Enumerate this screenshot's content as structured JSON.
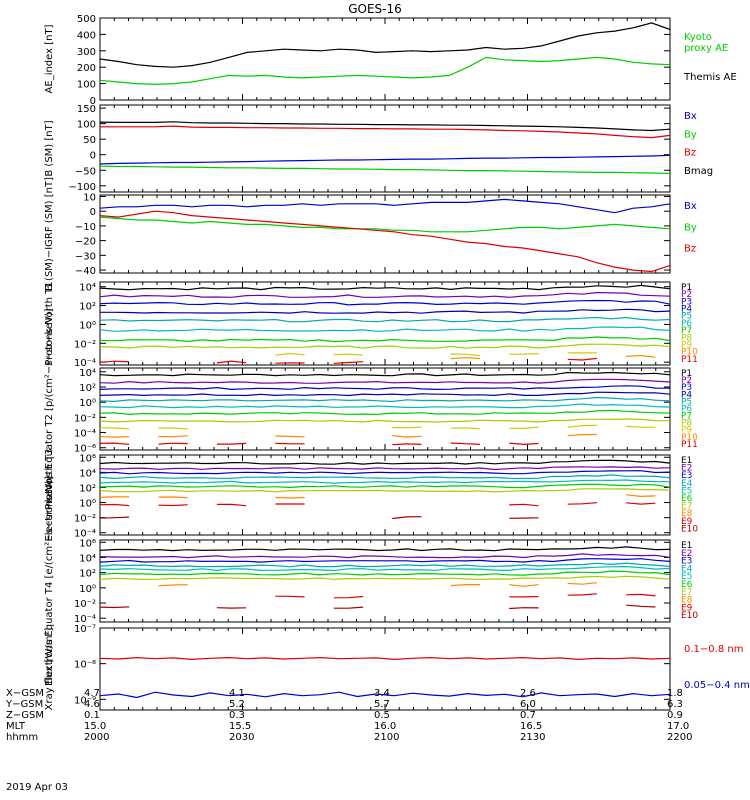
{
  "title": "GOES-16",
  "date": "2019 Apr 03",
  "colors": {
    "black": "#000000",
    "green": "#00cc00",
    "red": "#dd0000",
    "blue": "#0000cc",
    "purple": "#7700aa",
    "navy": "#0000aa",
    "cyan": "#00bbbb",
    "teal": "#00aaaa",
    "yellow": "#cccc00",
    "orange": "#ff8800",
    "darkred": "#aa0000"
  },
  "chart_data": [
    {
      "type": "line",
      "ylabel": "AE_index [nT]",
      "scale": "linear",
      "ylim": [
        0,
        500
      ],
      "yticks": [
        0,
        100,
        200,
        300,
        400,
        500
      ],
      "ytick_labels": [
        "0",
        "100",
        "200",
        "300",
        "400",
        "500"
      ],
      "series": [
        {
          "name": "Kyoto proxy AE",
          "color": "#00cc00",
          "values": [
            120,
            110,
            100,
            95,
            100,
            110,
            130,
            150,
            145,
            150,
            140,
            135,
            140,
            145,
            150,
            145,
            140,
            135,
            140,
            150,
            200,
            260,
            245,
            240,
            235,
            240,
            250,
            260,
            250,
            230,
            220,
            215
          ]
        },
        {
          "name": "Themis AE",
          "color": "#000000",
          "values": [
            250,
            235,
            215,
            205,
            200,
            210,
            230,
            260,
            290,
            300,
            310,
            305,
            300,
            310,
            305,
            290,
            295,
            300,
            295,
            300,
            305,
            320,
            310,
            315,
            330,
            360,
            390,
            410,
            420,
            440,
            470,
            430
          ]
        }
      ],
      "legend": [
        {
          "text": "Kyoto",
          "color": "#00cc00"
        },
        {
          "text": "proxy AE",
          "color": "#00cc00"
        },
        {
          "text": "Themis AE",
          "color": "#000000"
        }
      ]
    },
    {
      "type": "line",
      "ylabel": "B (SM) [nT]",
      "scale": "linear",
      "ylim": [
        -120,
        160
      ],
      "yticks": [
        -100,
        -50,
        0,
        50,
        100,
        150
      ],
      "ytick_labels": [
        "−100",
        "−50",
        "0",
        "50",
        "100",
        "150"
      ],
      "series": [
        {
          "name": "Bx",
          "color": "#0000cc",
          "values": [
            -30,
            -28,
            -27,
            -26,
            -25,
            -25,
            -24,
            -23,
            -22,
            -21,
            -20,
            -19,
            -18,
            -17,
            -17,
            -16,
            -15,
            -14,
            -14,
            -13,
            -12,
            -11,
            -11,
            -10,
            -9,
            -9,
            -8,
            -7,
            -6,
            -5,
            -4,
            -2
          ]
        },
        {
          "name": "By",
          "color": "#00cc00",
          "values": [
            -37,
            -38,
            -38,
            -39,
            -40,
            -40,
            -41,
            -42,
            -42,
            -43,
            -44,
            -44,
            -45,
            -46,
            -46,
            -47,
            -48,
            -48,
            -49,
            -50,
            -51,
            -51,
            -52,
            -53,
            -54,
            -55,
            -56,
            -57,
            -57,
            -58,
            -59,
            -60
          ]
        },
        {
          "name": "Bz",
          "color": "#dd0000",
          "values": [
            90,
            90,
            90,
            90,
            92,
            89,
            88,
            88,
            87,
            87,
            86,
            86,
            85,
            85,
            84,
            84,
            83,
            83,
            82,
            82,
            81,
            80,
            78,
            77,
            75,
            73,
            70,
            67,
            62,
            58,
            55,
            62
          ]
        },
        {
          "name": "Bmag",
          "color": "#000000",
          "values": [
            105,
            104,
            104,
            104,
            106,
            103,
            102,
            102,
            101,
            100,
            100,
            99,
            99,
            98,
            98,
            97,
            97,
            96,
            96,
            95,
            95,
            94,
            93,
            92,
            91,
            90,
            88,
            86,
            83,
            80,
            78,
            82
          ]
        }
      ],
      "legend": [
        {
          "text": "Bx",
          "color": "#0000cc"
        },
        {
          "text": "By",
          "color": "#00cc00"
        },
        {
          "text": "Bz",
          "color": "#dd0000"
        },
        {
          "text": "Bmag",
          "color": "#000000"
        }
      ]
    },
    {
      "type": "line",
      "ylabel": "B (SM)−IGRF (SM) [nT]",
      "scale": "linear",
      "ylim": [
        -42,
        11
      ],
      "yticks": [
        -40,
        -30,
        -20,
        -10,
        0,
        10
      ],
      "ytick_labels": [
        "−40",
        "−30",
        "−20",
        "−10",
        "0",
        "10"
      ],
      "series": [
        {
          "name": "Bx",
          "color": "#0000cc",
          "values": [
            2,
            3,
            3,
            4,
            4,
            3,
            4,
            4,
            3,
            4,
            4,
            5,
            4,
            5,
            5,
            5,
            4,
            5,
            6,
            6,
            6,
            7,
            8,
            7,
            6,
            5,
            3,
            1,
            -1,
            2,
            3,
            5
          ]
        },
        {
          "name": "By",
          "color": "#00cc00",
          "values": [
            -4,
            -5,
            -6,
            -6,
            -7,
            -8,
            -7,
            -8,
            -9,
            -9,
            -10,
            -11,
            -11,
            -12,
            -12,
            -12,
            -13,
            -13,
            -14,
            -14,
            -14,
            -13,
            -12,
            -11,
            -11,
            -12,
            -11,
            -10,
            -9,
            -10,
            -11,
            -12
          ]
        },
        {
          "name": "Bz",
          "color": "#dd0000",
          "values": [
            -3,
            -4,
            -2,
            0,
            -1,
            -3,
            -4,
            -5,
            -6,
            -7,
            -8,
            -9,
            -10,
            -11,
            -12,
            -13,
            -14,
            -16,
            -17,
            -19,
            -21,
            -22,
            -24,
            -25,
            -27,
            -29,
            -31,
            -35,
            -38,
            -40,
            -41,
            -37
          ]
        }
      ],
      "legend": [
        {
          "text": "Bx",
          "color": "#0000cc"
        },
        {
          "text": "By",
          "color": "#00cc00"
        },
        {
          "text": "Bz",
          "color": "#dd0000"
        }
      ]
    },
    {
      "type": "line",
      "ylabel": "Protons North T1",
      "scale": "log",
      "ylim": [
        -4.3,
        4.5
      ],
      "yticks": [
        -4,
        -2,
        0,
        2,
        4
      ],
      "ytick_labels": [
        "10⁻⁴",
        "10⁻²",
        "10⁰",
        "10²",
        "10⁴"
      ],
      "channels": [
        {
          "name": "P1",
          "color": "#000000",
          "level": 3.8
        },
        {
          "name": "P2",
          "color": "#7700aa",
          "level": 3.0
        },
        {
          "name": "P3",
          "color": "#0000cc",
          "level": 2.2
        },
        {
          "name": "P4",
          "color": "#0000aa",
          "level": 1.3
        },
        {
          "name": "P5",
          "color": "#00aaaa",
          "level": 0.4
        },
        {
          "name": "P6",
          "color": "#00bbbb",
          "level": -0.6
        },
        {
          "name": "P7",
          "color": "#00cc00",
          "level": -1.7
        },
        {
          "name": "P8",
          "color": "#aacc00",
          "level": -2.4
        },
        {
          "name": "P9",
          "color": "#cccc00",
          "level": -3.2
        },
        {
          "name": "P10",
          "color": "#ff8800",
          "level": -3.6
        },
        {
          "name": "P11",
          "color": "#dd0000",
          "level": -4.0
        }
      ]
    },
    {
      "type": "line",
      "ylabel": "Protons Equator T2 [p/(cm²−s−sr−keV)]",
      "scale": "log",
      "ylim": [
        -6.3,
        4.5
      ],
      "yticks": [
        -6,
        -4,
        -2,
        0,
        2,
        4
      ],
      "ytick_labels": [
        "10⁻⁶",
        "10⁻⁴",
        "10⁻²",
        "10⁰",
        "10²",
        "10⁴"
      ],
      "channels": [
        {
          "name": "P1",
          "color": "#000000",
          "level": 3.6
        },
        {
          "name": "P2",
          "color": "#7700aa",
          "level": 2.6
        },
        {
          "name": "P3",
          "color": "#0000cc",
          "level": 1.8
        },
        {
          "name": "P4",
          "color": "#0000aa",
          "level": 1.0
        },
        {
          "name": "P5",
          "color": "#00aaaa",
          "level": 0.2
        },
        {
          "name": "P6",
          "color": "#00bbbb",
          "level": -0.6
        },
        {
          "name": "P7",
          "color": "#00cc00",
          "level": -1.5
        },
        {
          "name": "P8",
          "color": "#aacc00",
          "level": -2.5
        },
        {
          "name": "P9",
          "color": "#cccc00",
          "level": -3.4
        },
        {
          "name": "P10",
          "color": "#ff8800",
          "level": -4.5
        },
        {
          "name": "P11",
          "color": "#dd0000",
          "level": -5.5
        }
      ]
    },
    {
      "type": "line",
      "ylabel": "Electrons North T3",
      "scale": "log",
      "ylim": [
        -4.3,
        6.3
      ],
      "yticks": [
        -4,
        -2,
        0,
        2,
        4,
        6
      ],
      "ytick_labels": [
        "10⁻⁴",
        "10⁻²",
        "10⁰",
        "10²",
        "10⁴",
        "10⁶"
      ],
      "channels": [
        {
          "name": "E1",
          "color": "#000000",
          "level": 5.2
        },
        {
          "name": "E2",
          "color": "#7700aa",
          "level": 4.5
        },
        {
          "name": "E3",
          "color": "#0000cc",
          "level": 3.9
        },
        {
          "name": "E4",
          "color": "#00aaaa",
          "level": 3.3
        },
        {
          "name": "E5",
          "color": "#00bbbb",
          "level": 2.7
        },
        {
          "name": "E6",
          "color": "#00cc00",
          "level": 2.1
        },
        {
          "name": "E7",
          "color": "#aacc00",
          "level": 1.5
        },
        {
          "name": "E8",
          "color": "#ff8800",
          "level": 0.7
        },
        {
          "name": "E9",
          "color": "#dd0000",
          "level": -0.3
        },
        {
          "name": "E10",
          "color": "#aa0000",
          "level": -2.0
        }
      ]
    },
    {
      "type": "line",
      "ylabel": "Electrons Equator T4 [e/(cm²−s−sr−keV)]",
      "scale": "log",
      "ylim": [
        -4.5,
        6.3
      ],
      "yticks": [
        -4,
        -2,
        0,
        2,
        4,
        6
      ],
      "ytick_labels": [
        "10⁻⁴",
        "10⁻²",
        "10⁰",
        "10²",
        "10⁴",
        "10⁶"
      ],
      "channels": [
        {
          "name": "E1",
          "color": "#000000",
          "level": 5.0
        },
        {
          "name": "E2",
          "color": "#7700aa",
          "level": 4.1
        },
        {
          "name": "E3",
          "color": "#0000cc",
          "level": 3.5
        },
        {
          "name": "E4",
          "color": "#00aaaa",
          "level": 2.9
        },
        {
          "name": "E5",
          "color": "#00bbbb",
          "level": 2.4
        },
        {
          "name": "E6",
          "color": "#00cc00",
          "level": 1.8
        },
        {
          "name": "E7",
          "color": "#aacc00",
          "level": 1.2
        },
        {
          "name": "E8",
          "color": "#ff8800",
          "level": 0.3
        },
        {
          "name": "E9",
          "color": "#dd0000",
          "level": -1.2
        },
        {
          "name": "E10",
          "color": "#aa0000",
          "level": -2.6
        }
      ]
    },
    {
      "type": "line",
      "ylabel": "Xray flux [W/m²]",
      "scale": "log",
      "ylim": [
        -9.3,
        -7
      ],
      "yticks": [
        -9,
        -8,
        -7
      ],
      "ytick_labels": [
        "10⁻⁹",
        "10⁻⁸",
        "10⁻⁷"
      ],
      "series": [
        {
          "name": "0.1−0.8 nm",
          "color": "#dd0000",
          "values": [
            -7.85,
            -7.87,
            -7.83,
            -7.86,
            -7.84,
            -7.88,
            -7.85,
            -7.83,
            -7.86,
            -7.84,
            -7.87,
            -7.85,
            -7.83,
            -7.86,
            -7.85,
            -7.84,
            -7.88,
            -7.85,
            -7.83,
            -7.86,
            -7.84,
            -7.87,
            -7.85,
            -7.83,
            -7.86,
            -7.84,
            -7.88,
            -7.85,
            -7.86,
            -7.84,
            -7.87,
            -7.85
          ]
        },
        {
          "name": "0.05−0.4 nm",
          "color": "#0000cc",
          "values": [
            -8.9,
            -8.85,
            -8.95,
            -8.8,
            -8.88,
            -8.92,
            -8.82,
            -8.9,
            -8.86,
            -8.93,
            -8.84,
            -8.9,
            -8.87,
            -8.8,
            -8.92,
            -8.85,
            -8.9,
            -8.83,
            -8.88,
            -8.91,
            -8.84,
            -8.89,
            -8.86,
            -8.93,
            -8.82,
            -8.9,
            -8.87,
            -8.85,
            -8.92,
            -8.84,
            -8.9,
            -8.86
          ]
        }
      ],
      "legend": [
        {
          "text": "0.1−0.8 nm",
          "color": "#dd0000"
        },
        {
          "text": "0.05−0.4 nm",
          "color": "#0000cc"
        }
      ]
    }
  ],
  "ephemeris": {
    "row_labels": [
      "X−GSM",
      "Y−GSM",
      "Z−GSM",
      "MLT",
      "hhmm"
    ],
    "columns": [
      [
        "4.7",
        "4.6",
        "0.1",
        "15.0",
        "2000"
      ],
      [
        "4.1",
        "5.2",
        "0.3",
        "15.5",
        "2030"
      ],
      [
        "3.4",
        "5.7",
        "0.5",
        "16.0",
        "2100"
      ],
      [
        "2.6",
        "6.0",
        "0.7",
        "16.5",
        "2130"
      ],
      [
        "1.8",
        "6.3",
        "0.9",
        "17.0",
        "2200"
      ]
    ]
  }
}
